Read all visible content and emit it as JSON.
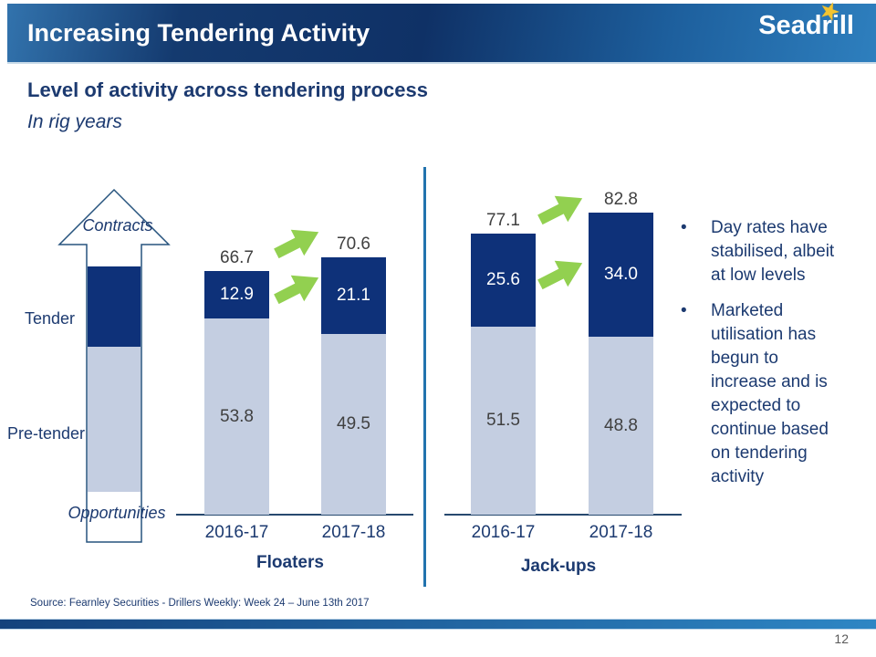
{
  "slide": {
    "title": "Increasing Tendering Activity",
    "subtitle": "Level of activity across tendering process",
    "unit_note": "In rig years",
    "source": "Source: Fearnley Securities - Drillers Weekly: Week 24 – June 13th 2017",
    "page_number": "12",
    "logo": {
      "text": "Seadrill",
      "star_char": "★"
    }
  },
  "funnel": {
    "stage_top": "Contracts",
    "stage_middle": "Tender",
    "stage_lower": "Pre-tender",
    "stage_bottom": "Opportunities"
  },
  "bullets": {
    "marker_char": "•",
    "items": [
      "Day rates have stabilised, albeit at low levels",
      "Marketed utilisation has begun to increase and is expected to continue based on tendering activity"
    ]
  },
  "chart_data": {
    "type": "bar",
    "stacked": true,
    "value_unit": "rig years",
    "groups": [
      {
        "name": "Floaters",
        "categories": [
          "2016-17",
          "2017-18"
        ],
        "series": [
          {
            "name": "Tender",
            "values": [
              12.9,
              21.1
            ]
          },
          {
            "name": "Pre-tender",
            "values": [
              53.8,
              49.5
            ]
          }
        ],
        "totals": [
          66.7,
          70.6
        ]
      },
      {
        "name": "Jack-ups",
        "categories": [
          "2016-17",
          "2017-18"
        ],
        "series": [
          {
            "name": "Tender",
            "values": [
              25.6,
              34.0
            ]
          },
          {
            "name": "Pre-tender",
            "values": [
              51.5,
              48.8
            ]
          }
        ],
        "totals": [
          77.1,
          82.8
        ]
      }
    ]
  },
  "colors": {
    "tender_segment": "#0E3179",
    "pretender_segment": "#C4CEE1",
    "growth_arrow_green": "#92D050",
    "navy_text": "#1C3A70",
    "value_label_gray": "#404040"
  }
}
